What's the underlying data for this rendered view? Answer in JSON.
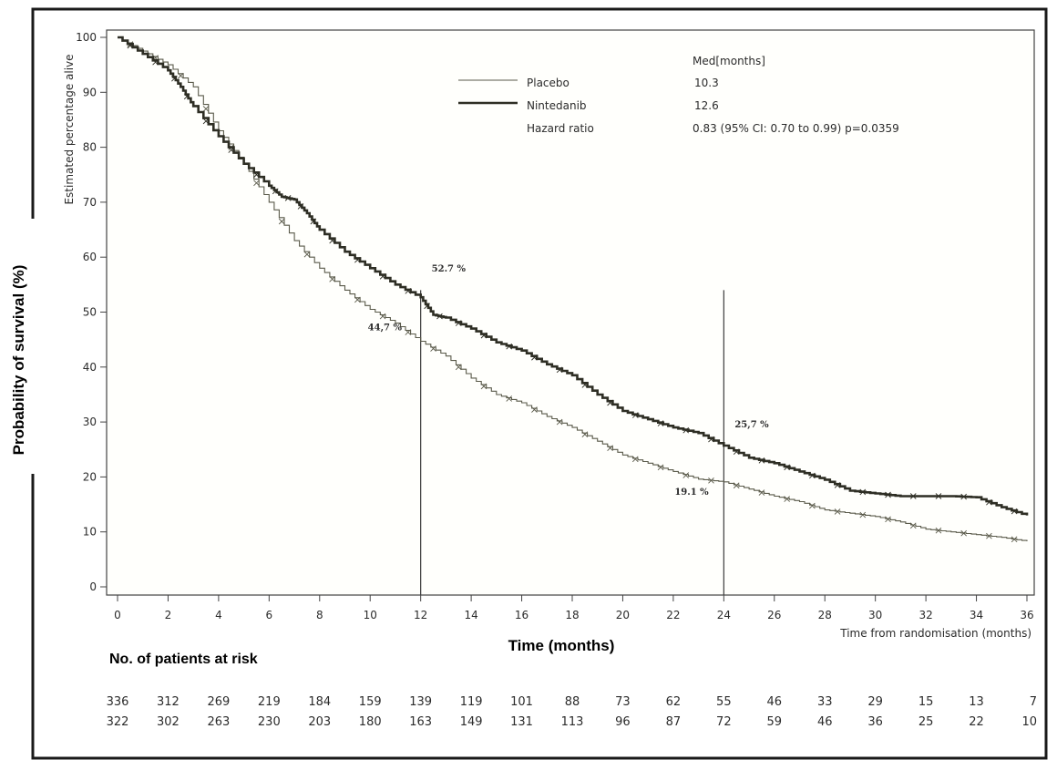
{
  "chart_data": {
    "type": "line",
    "title": "",
    "ylabel": "Probability of survival (%)",
    "ylabel_inner": "Estimated percentage alive",
    "xlabel": "Time (months)",
    "xlabel_inner": "Time from randomisation (months)",
    "xlim": [
      0,
      36
    ],
    "ylim": [
      0,
      100
    ],
    "x_ticks": [
      0,
      2,
      4,
      6,
      8,
      10,
      12,
      14,
      16,
      18,
      20,
      22,
      24,
      26,
      28,
      30,
      32,
      34,
      36
    ],
    "y_ticks": [
      0,
      10,
      20,
      30,
      40,
      50,
      60,
      70,
      80,
      90,
      100
    ],
    "series": [
      {
        "name": "Placebo",
        "style": "thin",
        "color": "#5a5a4a",
        "points": [
          [
            0,
            100
          ],
          [
            1,
            97.5
          ],
          [
            2,
            95
          ],
          [
            3,
            91
          ],
          [
            4,
            83
          ],
          [
            5,
            77
          ],
          [
            6,
            70
          ],
          [
            7,
            63
          ],
          [
            8,
            58
          ],
          [
            9,
            54
          ],
          [
            10,
            50.5
          ],
          [
            11,
            48
          ],
          [
            12,
            44.7
          ],
          [
            13,
            42
          ],
          [
            14,
            38
          ],
          [
            15,
            35
          ],
          [
            16,
            33.5
          ],
          [
            17,
            31
          ],
          [
            18,
            29
          ],
          [
            19,
            26.5
          ],
          [
            20,
            24
          ],
          [
            21,
            22.5
          ],
          [
            22,
            21
          ],
          [
            23,
            19.6
          ],
          [
            24,
            19.1
          ],
          [
            25,
            17.8
          ],
          [
            26,
            16.5
          ],
          [
            27,
            15.5
          ],
          [
            28,
            14
          ],
          [
            29,
            13.4
          ],
          [
            30,
            12.8
          ],
          [
            31,
            11.8
          ],
          [
            32,
            10.5
          ],
          [
            33,
            10
          ],
          [
            34,
            9.5
          ],
          [
            35,
            9
          ],
          [
            36,
            8.3
          ]
        ]
      },
      {
        "name": "Nintedanib",
        "style": "thick",
        "color": "#2e2e24",
        "points": [
          [
            0,
            100
          ],
          [
            1,
            97
          ],
          [
            2,
            94
          ],
          [
            2.5,
            91
          ],
          [
            3,
            87.5
          ],
          [
            4,
            82
          ],
          [
            5,
            77
          ],
          [
            6,
            73
          ],
          [
            6.5,
            71
          ],
          [
            7,
            70.5
          ],
          [
            7.5,
            68
          ],
          [
            8,
            65
          ],
          [
            9,
            61
          ],
          [
            10,
            58
          ],
          [
            11,
            55
          ],
          [
            12,
            52.7
          ],
          [
            12.5,
            49.5
          ],
          [
            13,
            49
          ],
          [
            14,
            47
          ],
          [
            15,
            44.5
          ],
          [
            16,
            43
          ],
          [
            17,
            40.5
          ],
          [
            18,
            38.5
          ],
          [
            19,
            35
          ],
          [
            20,
            32
          ],
          [
            21,
            30.5
          ],
          [
            22,
            29
          ],
          [
            23,
            28
          ],
          [
            24,
            25.7
          ],
          [
            25,
            23.5
          ],
          [
            26,
            22.5
          ],
          [
            27,
            21
          ],
          [
            28,
            19.5
          ],
          [
            29,
            17.5
          ],
          [
            30,
            17
          ],
          [
            31,
            16.5
          ],
          [
            32,
            16.5
          ],
          [
            33,
            16.5
          ],
          [
            34,
            16.3
          ],
          [
            35,
            14.5
          ],
          [
            36,
            13
          ]
        ]
      }
    ],
    "reference_lines_x": [
      12,
      24
    ],
    "annotations": [
      {
        "text": "52.7 %",
        "x": 12,
        "y": 52.7
      },
      {
        "text": "44,7 %",
        "x": 12,
        "y": 44.7
      },
      {
        "text": "25,7 %",
        "x": 24,
        "y": 25.7
      },
      {
        "text": "19.1 %",
        "x": 24,
        "y": 19.1
      }
    ],
    "legend": {
      "position": "top-right",
      "header": "Med[months]",
      "entries": [
        {
          "name": "Placebo",
          "median": "10.3"
        },
        {
          "name": "Nintedanib",
          "median": "12.6"
        }
      ],
      "hazard_label": "Hazard ratio",
      "hazard_value": "0.83 (95% CI: 0.70 to 0.99) p=0.0359"
    },
    "risk_table": {
      "title": "No. of patients at risk",
      "rows": [
        [
          "336",
          "312",
          "269",
          "219",
          "184",
          "159",
          "139",
          "119",
          "101",
          "88",
          "73",
          "62",
          "55",
          "46",
          "33",
          "29",
          "15",
          "13",
          "7"
        ],
        [
          "322",
          "302",
          "263",
          "230",
          "203",
          "180",
          "163",
          "149",
          "131",
          "113",
          "96",
          "87",
          "72",
          "59",
          "46",
          "36",
          "25",
          "22",
          "10"
        ]
      ]
    }
  }
}
